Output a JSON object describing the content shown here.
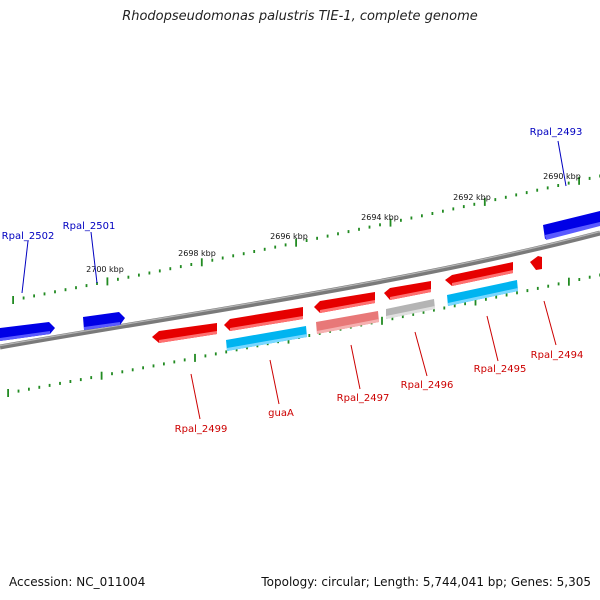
{
  "title": "Rhodopseudomonas palustris TIE-1, complete genome",
  "footer": {
    "accession": "Accession: NC_011004",
    "summary": "Topology: circular; Length: 5,744,041 bp; Genes: 5,305"
  },
  "colors": {
    "backbone": "#808080",
    "forward_gene": "#0000e0",
    "reverse_gene": "#e00000",
    "reverse_gene_light": "#e87070",
    "cds_cyan": "#00b0f0",
    "pseudo_gray": "#b8b8b8",
    "tick": "#228B22",
    "forward_label": "#0000c0",
    "reverse_label": "#cc0000"
  },
  "scale_labels": [
    "2690 kbp",
    "2692 kbp",
    "2694 kbp",
    "2696 kbp",
    "2698 kbp",
    "2700 kbp"
  ],
  "genes": [
    {
      "name": "Rpal_2493",
      "strand": "forward"
    },
    {
      "name": "Rpal_2494",
      "strand": "reverse"
    },
    {
      "name": "Rpal_2495",
      "strand": "reverse"
    },
    {
      "name": "Rpal_2496",
      "strand": "reverse"
    },
    {
      "name": "Rpal_2497",
      "strand": "reverse"
    },
    {
      "name": "guaA",
      "strand": "reverse"
    },
    {
      "name": "Rpal_2499",
      "strand": "reverse"
    },
    {
      "name": "Rpal_2501",
      "strand": "forward"
    },
    {
      "name": "Rpal_2502",
      "strand": "forward"
    }
  ]
}
